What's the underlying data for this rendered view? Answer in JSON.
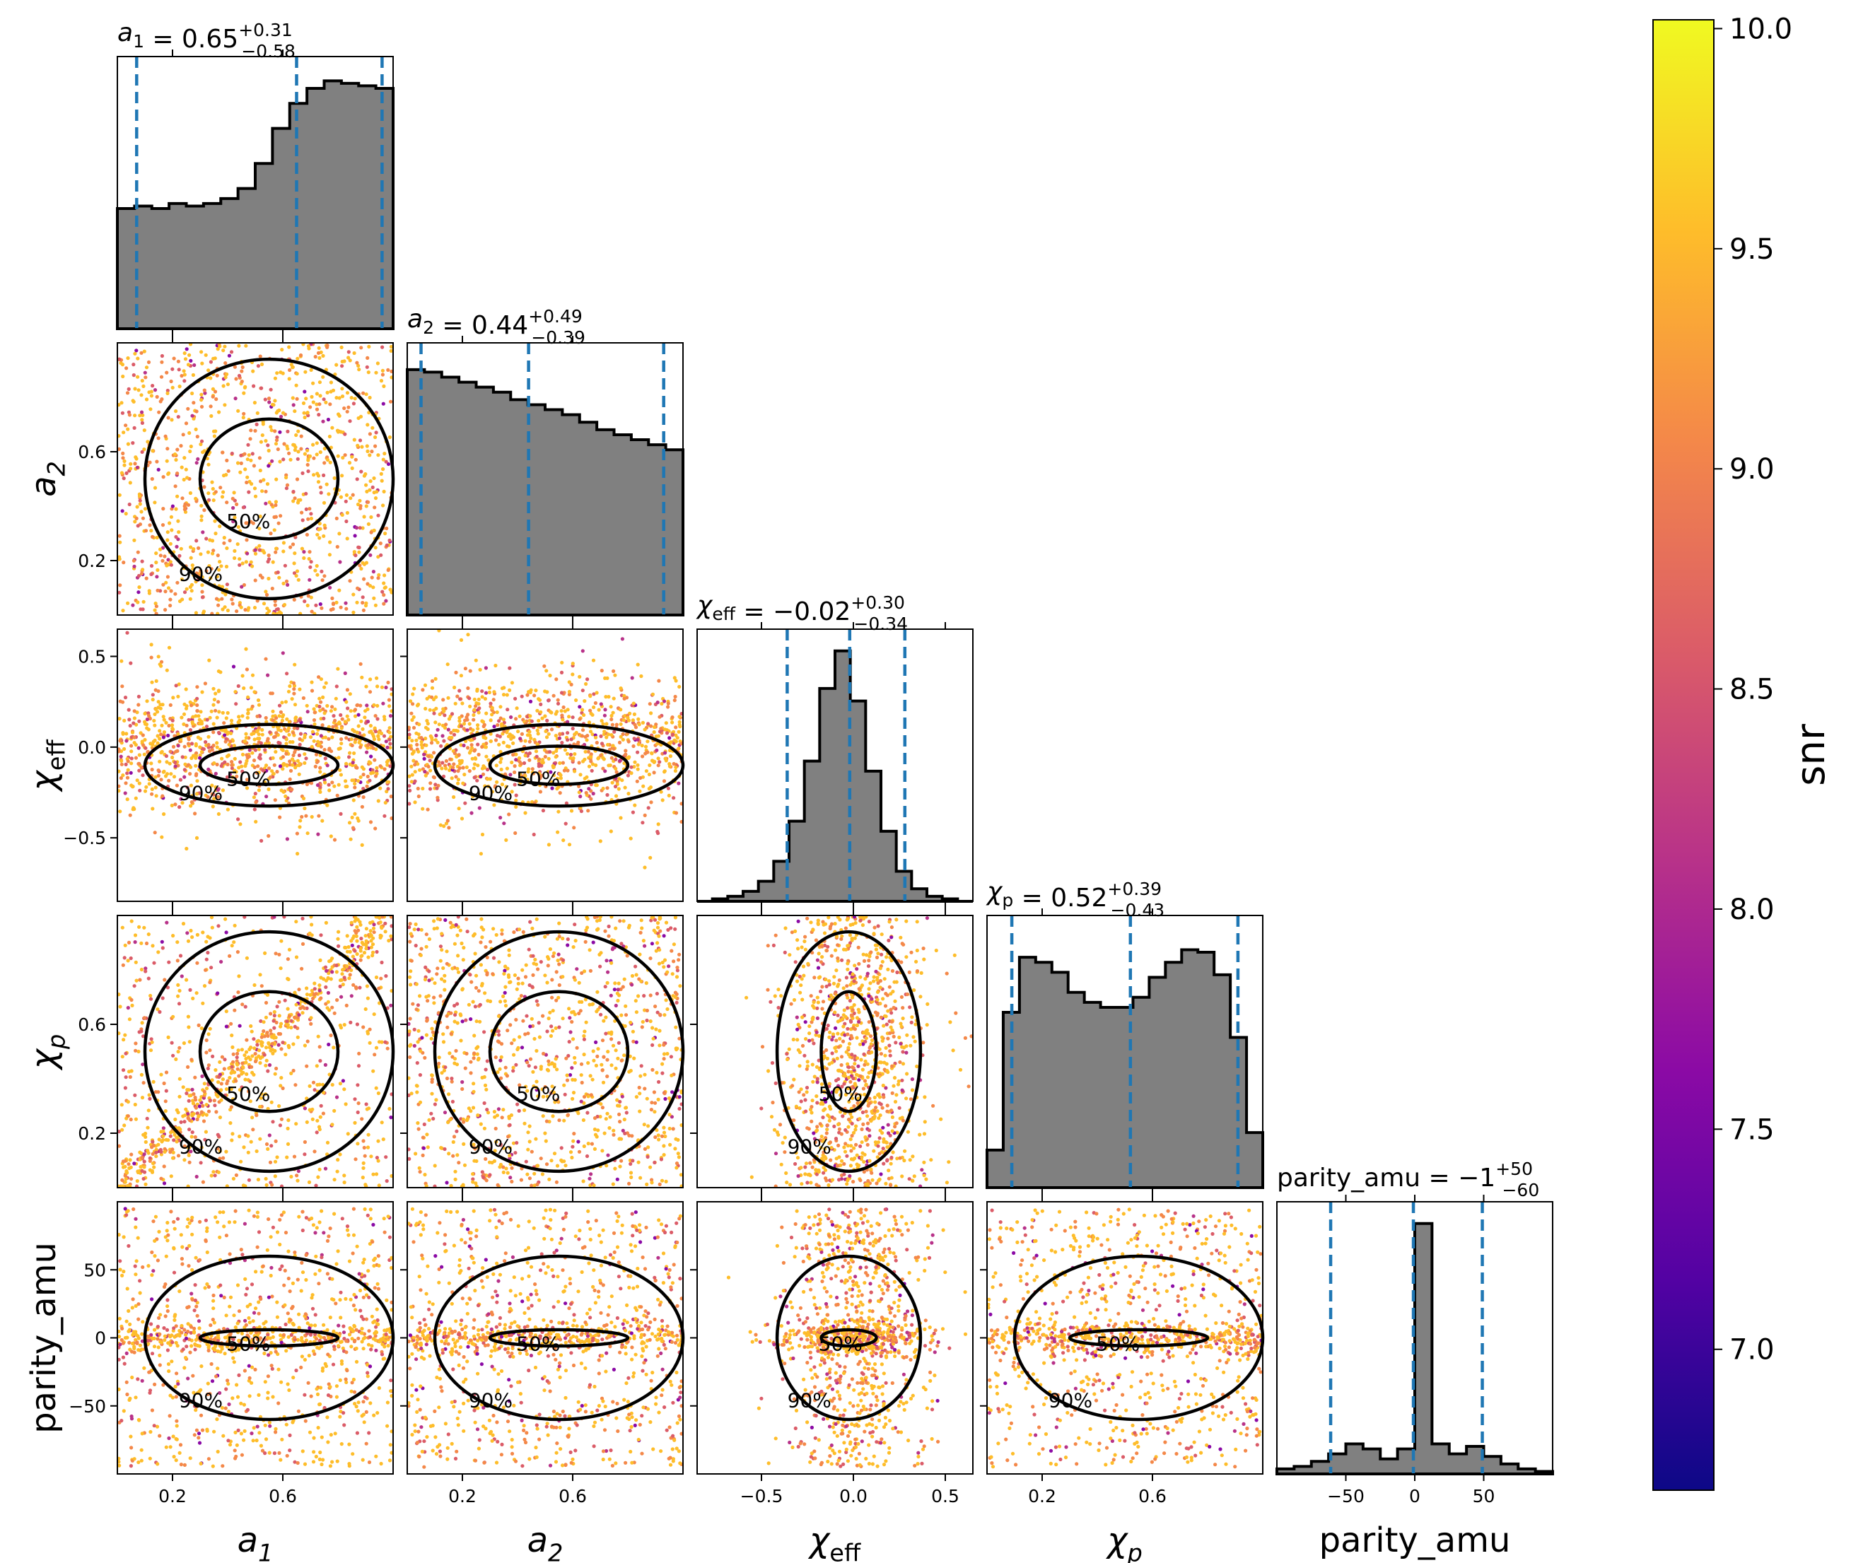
{
  "figure": {
    "type": "corner",
    "parameters": [
      {
        "key": "a1",
        "label": "a_1",
        "title": {
          "value": "0.65",
          "plus": "+0.31",
          "minus": "−0.58"
        },
        "ticks": [
          "0.2",
          "0.6"
        ],
        "range": [
          0.0,
          1.0
        ],
        "quantiles": [
          0.07,
          0.65,
          0.96
        ]
      },
      {
        "key": "a2",
        "label": "a_2",
        "title": {
          "value": "0.44",
          "plus": "+0.49",
          "minus": "−0.39"
        },
        "ticks": [
          "0.2",
          "0.6"
        ],
        "range": [
          0.0,
          1.0
        ],
        "quantiles": [
          0.05,
          0.44,
          0.93
        ]
      },
      {
        "key": "chi_eff",
        "label": "χ_eff",
        "title": {
          "value": "−0.02",
          "plus": "+0.30",
          "minus": "−0.34"
        },
        "ticks": [
          "−0.5",
          "0.0",
          "0.5"
        ],
        "range": [
          -0.85,
          0.65
        ],
        "quantiles": [
          -0.36,
          -0.02,
          0.28
        ]
      },
      {
        "key": "chi_p",
        "label": "χ_p",
        "title": {
          "value": "0.52",
          "plus": "+0.39",
          "minus": "−0.43"
        },
        "ticks": [
          "0.2",
          "0.6"
        ],
        "range": [
          0.0,
          1.0
        ],
        "quantiles": [
          0.09,
          0.52,
          0.91
        ]
      },
      {
        "key": "parity_amu",
        "label": "parity_amu",
        "title": {
          "value": "−1",
          "plus": "+50",
          "minus": "−60"
        },
        "ticks": [
          "−50",
          "0",
          "50"
        ],
        "range": [
          -100,
          100
        ],
        "quantiles": [
          -61,
          -1,
          49
        ]
      }
    ],
    "contour_labels": {
      "inner": "50%",
      "outer": "90%"
    },
    "colorbar": {
      "label": "snr",
      "colormap": "plasma",
      "range": [
        6.68,
        10.02
      ],
      "ticks": [
        "7.0",
        "7.5",
        "8.0",
        "8.5",
        "9.0",
        "9.5",
        "10.0"
      ],
      "colors": [
        "#0d0887",
        "#5302a3",
        "#8b0aa5",
        "#b83289",
        "#db5c68",
        "#f48849",
        "#febd2a",
        "#f0f921"
      ]
    },
    "hist_fill": "#808080",
    "quantile_color": "#1f77b4",
    "point_color_main": "#f5a83a"
  },
  "chart_data": {
    "type": "corner",
    "histograms": {
      "a1": {
        "bins": [
          0,
          1
        ],
        "heights": [
          0.48,
          0.49,
          0.48,
          0.5,
          0.49,
          0.5,
          0.52,
          0.56,
          0.66,
          0.8,
          0.9,
          0.96,
          0.99,
          0.98,
          0.97,
          0.96
        ]
      },
      "a2": {
        "bins": [
          0,
          1
        ],
        "heights": [
          0.98,
          0.97,
          0.95,
          0.93,
          0.91,
          0.89,
          0.86,
          0.84,
          0.82,
          0.8,
          0.77,
          0.74,
          0.72,
          0.7,
          0.68,
          0.66
        ]
      },
      "chi_eff": {
        "bins": [
          -0.85,
          0.65
        ],
        "heights": [
          0.0,
          0.01,
          0.02,
          0.04,
          0.08,
          0.16,
          0.32,
          0.56,
          0.85,
          1.0,
          0.8,
          0.52,
          0.28,
          0.12,
          0.05,
          0.02,
          0.01,
          0.0
        ]
      },
      "chi_p": {
        "bins": [
          0,
          1
        ],
        "heights": [
          0.15,
          0.7,
          0.92,
          0.9,
          0.86,
          0.78,
          0.74,
          0.72,
          0.72,
          0.76,
          0.84,
          0.9,
          0.95,
          0.94,
          0.85,
          0.6,
          0.22
        ]
      },
      "parity_amu": {
        "bins": [
          -100,
          100
        ],
        "heights": [
          0.02,
          0.03,
          0.05,
          0.08,
          0.12,
          0.1,
          0.06,
          0.1,
          1.0,
          0.12,
          0.08,
          0.11,
          0.07,
          0.04,
          0.02,
          0.01
        ]
      }
    }
  }
}
